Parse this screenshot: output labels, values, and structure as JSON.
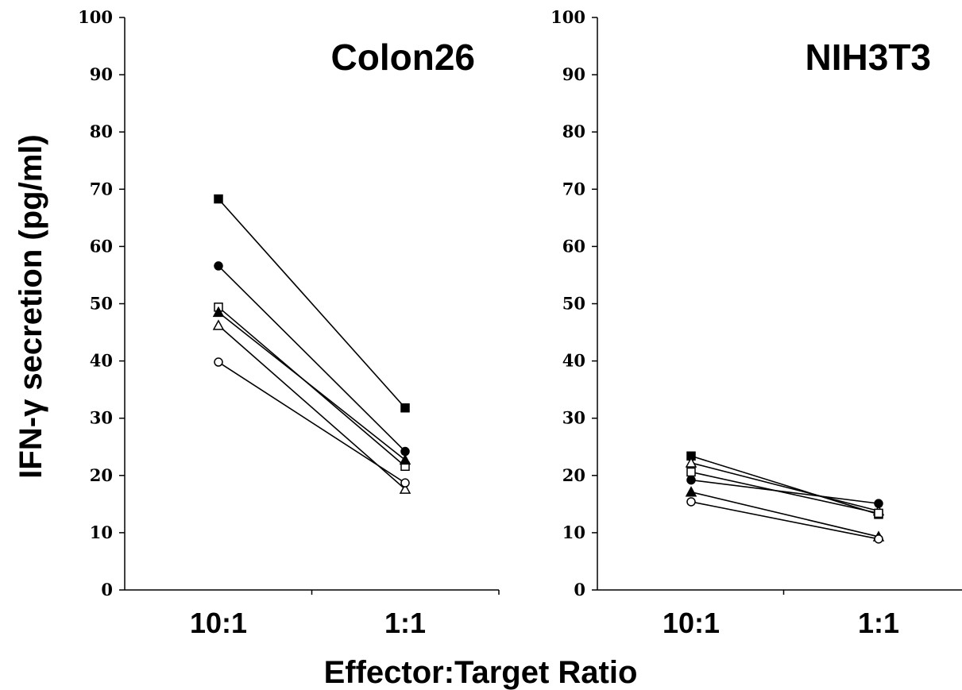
{
  "figure": {
    "ylabel": "IFN-γ secretion (pg/ml)",
    "xlabel": "Effector:Target Ratio"
  },
  "chart_data": [
    {
      "type": "line",
      "title": "Colon26",
      "categories": [
        "10:1",
        "1:1"
      ],
      "ylim": [
        0,
        100
      ],
      "yticks": [
        0,
        10,
        20,
        30,
        40,
        50,
        60,
        70,
        80,
        90,
        100
      ],
      "grid": false,
      "series": [
        {
          "marker": "square-filled",
          "values": [
            68.3,
            31.8
          ]
        },
        {
          "marker": "circle-filled",
          "values": [
            56.6,
            24.2
          ]
        },
        {
          "marker": "square-open",
          "values": [
            49.4,
            21.6
          ]
        },
        {
          "marker": "triangle-filled",
          "values": [
            48.5,
            22.7
          ]
        },
        {
          "marker": "triangle-open",
          "values": [
            46.2,
            17.6
          ]
        },
        {
          "marker": "circle-open",
          "values": [
            39.8,
            18.7
          ]
        }
      ]
    },
    {
      "type": "line",
      "title": "NIH3T3",
      "categories": [
        "10:1",
        "1:1"
      ],
      "ylim": [
        0,
        100
      ],
      "yticks": [
        0,
        10,
        20,
        30,
        40,
        50,
        60,
        70,
        80,
        90,
        100
      ],
      "grid": false,
      "series": [
        {
          "marker": "square-filled",
          "values": [
            23.4,
            13.2
          ]
        },
        {
          "marker": "triangle-open",
          "values": [
            22.2,
            13.8
          ]
        },
        {
          "marker": "square-open",
          "values": [
            20.6,
            13.4
          ]
        },
        {
          "marker": "circle-filled",
          "values": [
            19.2,
            15.1
          ]
        },
        {
          "marker": "triangle-filled",
          "values": [
            17.1,
            9.3
          ]
        },
        {
          "marker": "circle-open",
          "values": [
            15.4,
            8.9
          ]
        }
      ]
    }
  ]
}
